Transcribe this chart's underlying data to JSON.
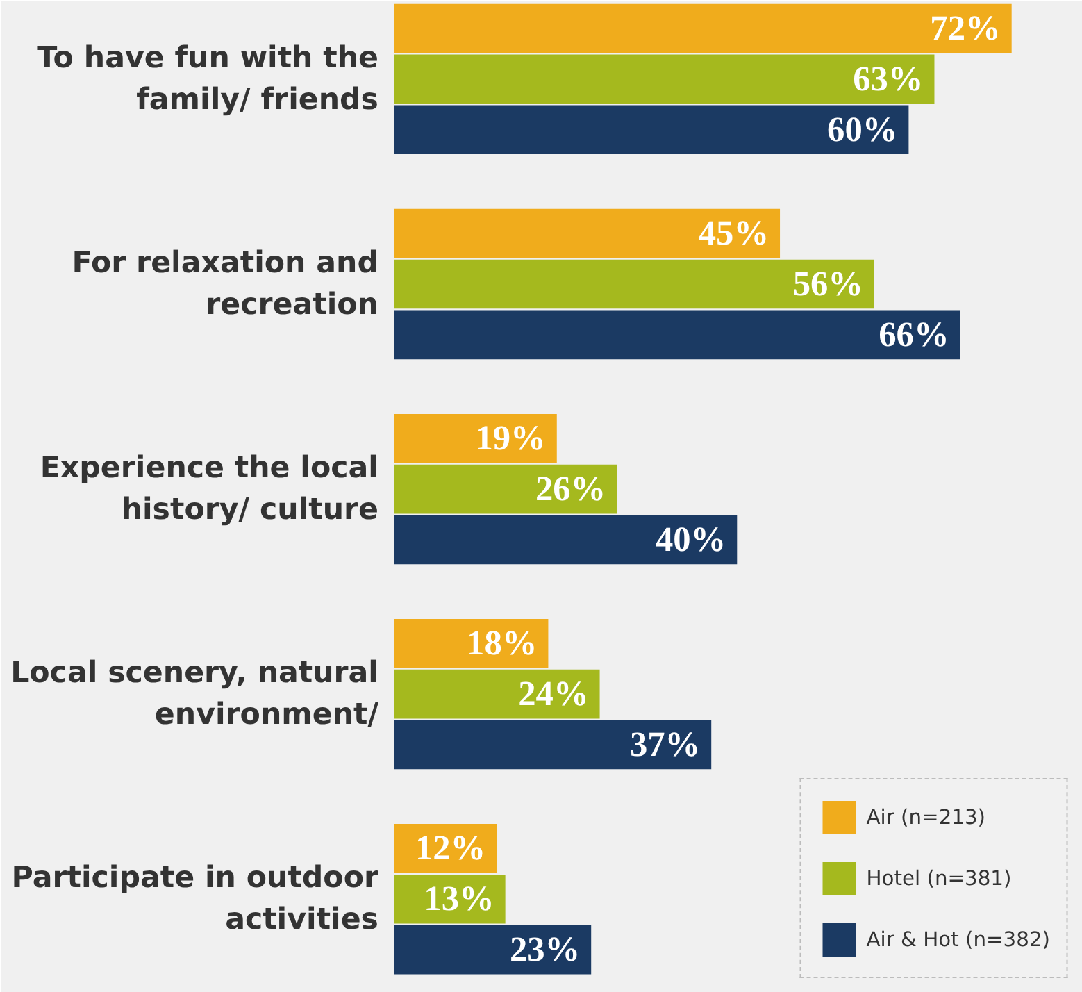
{
  "chart_data": {
    "type": "bar",
    "orientation": "horizontal",
    "categories": [
      "To have fun with the family/ friends",
      "For relaxation and recreation",
      "Experience the local history/ culture",
      "Local scenery, natural environment/",
      "Participate in outdoor activities"
    ],
    "series": [
      {
        "name": "Air (n=213)",
        "color": "#f0ac1c",
        "values": [
          72,
          45,
          19,
          18,
          12
        ],
        "value_labels": [
          "72%",
          "45%",
          "19%",
          "18%",
          "12%"
        ]
      },
      {
        "name": "Hotel (n=381)",
        "color": "#a5b91e",
        "values": [
          63,
          56,
          26,
          24,
          13
        ],
        "value_labels": [
          "63%",
          "56%",
          "26%",
          "24%",
          "13%"
        ]
      },
      {
        "name": "Air & Hot (n=382)",
        "color": "#1b3a63",
        "values": [
          60,
          66,
          40,
          37,
          23
        ],
        "value_labels": [
          "60%",
          "66%",
          "40%",
          "37%",
          "23%"
        ]
      }
    ],
    "legend": "bottom right",
    "tick_labels": "y",
    "grid": false
  }
}
